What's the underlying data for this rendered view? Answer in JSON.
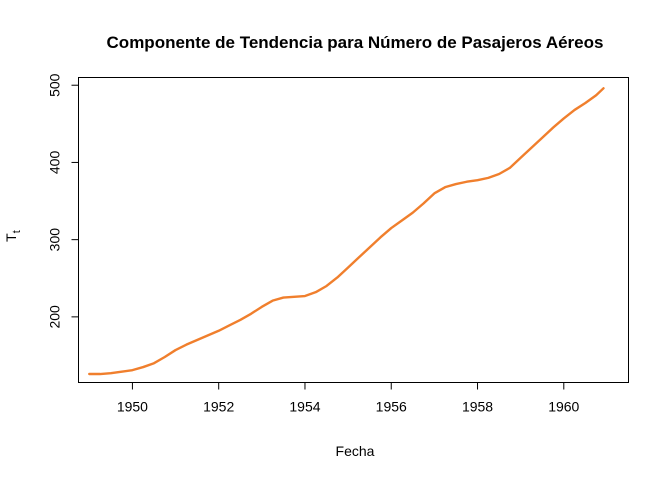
{
  "chart_data": {
    "type": "line",
    "title": "Componente de Tendencia para Número de Pasajeros Aéreos",
    "xlabel": "Fecha",
    "ylabel": "T",
    "ylabel_subscript": "t",
    "xlim": [
      1948.75,
      1961.5
    ],
    "ylim": [
      115,
      510
    ],
    "x_ticks": [
      1950,
      1952,
      1954,
      1956,
      1958,
      1960
    ],
    "y_ticks": [
      200,
      300,
      400,
      500
    ],
    "line_color": "#f07f2d",
    "grid": false,
    "series": [
      {
        "x": [
          1949.0,
          1949.25,
          1949.5,
          1949.75,
          1950.0,
          1950.25,
          1950.5,
          1950.75,
          1951.0,
          1951.25,
          1951.5,
          1951.75,
          1952.0,
          1952.25,
          1952.5,
          1952.75,
          1953.0,
          1953.25,
          1953.5,
          1953.75,
          1954.0,
          1954.25,
          1954.5,
          1954.75,
          1955.0,
          1955.25,
          1955.5,
          1955.75,
          1956.0,
          1956.25,
          1956.5,
          1956.75,
          1957.0,
          1957.25,
          1957.5,
          1957.75,
          1958.0,
          1958.25,
          1958.5,
          1958.75,
          1959.0,
          1959.25,
          1959.5,
          1959.75,
          1960.0,
          1960.25,
          1960.5,
          1960.75,
          1960.92
        ],
        "y": [
          126,
          126,
          127,
          129,
          131,
          135,
          140,
          148,
          157,
          164,
          170,
          176,
          182,
          189,
          196,
          204,
          213,
          221,
          225,
          226,
          227,
          232,
          240,
          251,
          264,
          277,
          290,
          303,
          315,
          325,
          335,
          347,
          360,
          368,
          372,
          375,
          377,
          380,
          385,
          393,
          406,
          419,
          432,
          445,
          457,
          468,
          477,
          487,
          496
        ]
      }
    ]
  }
}
